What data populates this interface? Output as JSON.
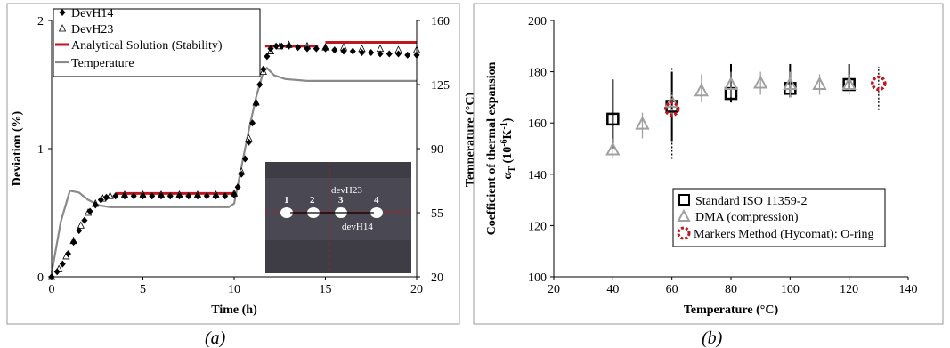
{
  "chart_data": [
    {
      "panel": "(a)",
      "type": "line",
      "title": "",
      "xlabel": "Time (h)",
      "ylabel": "Deviation (%)",
      "y2label": "Temperature (°C)",
      "xlim": [
        0,
        20
      ],
      "ylim": [
        0,
        2
      ],
      "y2lim": [
        20,
        160
      ],
      "xticks": [
        "0",
        "5",
        "10",
        "15",
        "20"
      ],
      "yticks": [
        "0",
        "1",
        "2"
      ],
      "y2ticks": [
        "20",
        "55",
        "90",
        "125",
        "160"
      ],
      "legend_position": "top-left",
      "series": [
        {
          "name": "DevH14",
          "marker": "diamond",
          "color": "#000000",
          "x": [
            0,
            0.3,
            0.6,
            0.9,
            1.2,
            1.5,
            1.8,
            2.1,
            2.4,
            2.7,
            3.0,
            3.5,
            4,
            4.5,
            5,
            5.5,
            6,
            6.5,
            7,
            7.5,
            8,
            8.5,
            9,
            9.5,
            10,
            10.2,
            10.4,
            10.6,
            10.8,
            11.0,
            11.2,
            11.4,
            11.6,
            11.8,
            12.0,
            12.3,
            12.6,
            13,
            13.5,
            14,
            14.5,
            15,
            15.5,
            16,
            16.5,
            17,
            17.5,
            18,
            18.5,
            19,
            19.5,
            20
          ],
          "values": [
            0,
            0.04,
            0.1,
            0.18,
            0.27,
            0.36,
            0.44,
            0.51,
            0.56,
            0.6,
            0.62,
            0.63,
            0.63,
            0.63,
            0.63,
            0.63,
            0.63,
            0.63,
            0.63,
            0.63,
            0.63,
            0.63,
            0.63,
            0.63,
            0.64,
            0.7,
            0.8,
            0.92,
            1.05,
            1.2,
            1.35,
            1.5,
            1.62,
            1.72,
            1.78,
            1.8,
            1.8,
            1.8,
            1.79,
            1.78,
            1.78,
            1.78,
            1.77,
            1.76,
            1.76,
            1.75,
            1.75,
            1.74,
            1.74,
            1.74,
            1.73,
            1.73
          ]
        },
        {
          "name": "DevH23",
          "marker": "triangle-open",
          "color": "#000000",
          "x": [
            0,
            0.4,
            0.8,
            1.2,
            1.6,
            2.0,
            2.4,
            2.8,
            3.2,
            4,
            5,
            6,
            7,
            8,
            9,
            10,
            10.4,
            10.8,
            11.2,
            11.6,
            12.0,
            12.5,
            13,
            14,
            15,
            16,
            17,
            18,
            19,
            20
          ],
          "values": [
            0,
            0.06,
            0.16,
            0.28,
            0.4,
            0.5,
            0.57,
            0.61,
            0.63,
            0.64,
            0.64,
            0.64,
            0.64,
            0.64,
            0.64,
            0.65,
            0.82,
            1.08,
            1.36,
            1.6,
            1.76,
            1.8,
            1.81,
            1.8,
            1.79,
            1.79,
            1.78,
            1.78,
            1.77,
            1.77
          ]
        },
        {
          "name": "Analytical Solution (Stability)",
          "style": "line",
          "color": "#c0161e",
          "segments": [
            {
              "x": [
                3.5,
                10.0
              ],
              "values": [
                0.65,
                0.65
              ]
            },
            {
              "x": [
                11.7,
                14.6
              ],
              "values": [
                1.8,
                1.8
              ]
            },
            {
              "x": [
                15.0,
                20.0
              ],
              "values": [
                1.83,
                1.83
              ]
            }
          ]
        },
        {
          "name": "Temperature",
          "style": "line",
          "axis": "y2",
          "color": "#8a8a8a",
          "x": [
            0,
            0.5,
            1.0,
            1.5,
            2.0,
            2.6,
            3.2,
            4,
            6,
            8,
            9.7,
            10.0,
            10.4,
            10.8,
            11.2,
            11.6,
            11.8,
            12.2,
            12.8,
            14,
            16,
            18,
            20
          ],
          "values": [
            22,
            50,
            67,
            66,
            62,
            59,
            58,
            58,
            58,
            58,
            58,
            60,
            80,
            100,
            118,
            132,
            134,
            130,
            128,
            127,
            127,
            127,
            127
          ]
        }
      ],
      "inset": {
        "labels": [
          "devH23",
          "devH14"
        ],
        "markers": [
          "1",
          "2",
          "3",
          "4"
        ]
      },
      "caption": "(a)"
    },
    {
      "panel": "(b)",
      "type": "scatter",
      "title": "",
      "xlabel": "Temperature (°C)",
      "ylabel_line1": "Coefficient of thermal expansion",
      "ylabel_line2": "α",
      "ylabel_sub": "T",
      "ylabel_unit": "(10",
      "ylabel_exp": "-6",
      "ylabel_unit2": "K",
      "ylabel_exp2": "-1",
      "ylabel_close": ")",
      "xlim": [
        20,
        140
      ],
      "ylim": [
        100,
        200
      ],
      "xticks": [
        "20",
        "40",
        "60",
        "80",
        "100",
        "120",
        "140"
      ],
      "yticks": [
        "100",
        "120",
        "140",
        "160",
        "180",
        "200"
      ],
      "legend_position": "bottom-right",
      "series": [
        {
          "name": "Standard ISO 11359-2",
          "marker": "square-open",
          "color": "#000000",
          "x": [
            40,
            60,
            80,
            100,
            120
          ],
          "values": [
            161.5,
            166.5,
            171.5,
            173.5,
            175
          ],
          "err_low": [
            150,
            153,
            168,
            170,
            172.5
          ],
          "err_high": [
            177,
            180,
            183,
            183,
            183
          ]
        },
        {
          "name": "DMA (compression)",
          "marker": "triangle-open",
          "color": "#a0a0a0",
          "x": [
            40,
            50,
            60,
            70,
            80,
            90,
            100,
            110,
            120
          ],
          "values": [
            149.5,
            159.5,
            168,
            172.5,
            175,
            175.5,
            175,
            175,
            175
          ],
          "err_low": [
            146,
            154,
            163,
            168,
            170,
            171,
            170,
            171,
            171
          ],
          "err_high": [
            154,
            164,
            172,
            179,
            180,
            180,
            180,
            179,
            179
          ]
        },
        {
          "name": "Markers Method (Hycomat): O-ring",
          "marker": "circle-dotted",
          "color": "#c0161e",
          "x": [
            60,
            130
          ],
          "values": [
            165.5,
            175.5
          ],
          "err_low": [
            146,
            165
          ],
          "err_high": [
            182,
            182
          ]
        }
      ],
      "caption": "(b)"
    }
  ]
}
